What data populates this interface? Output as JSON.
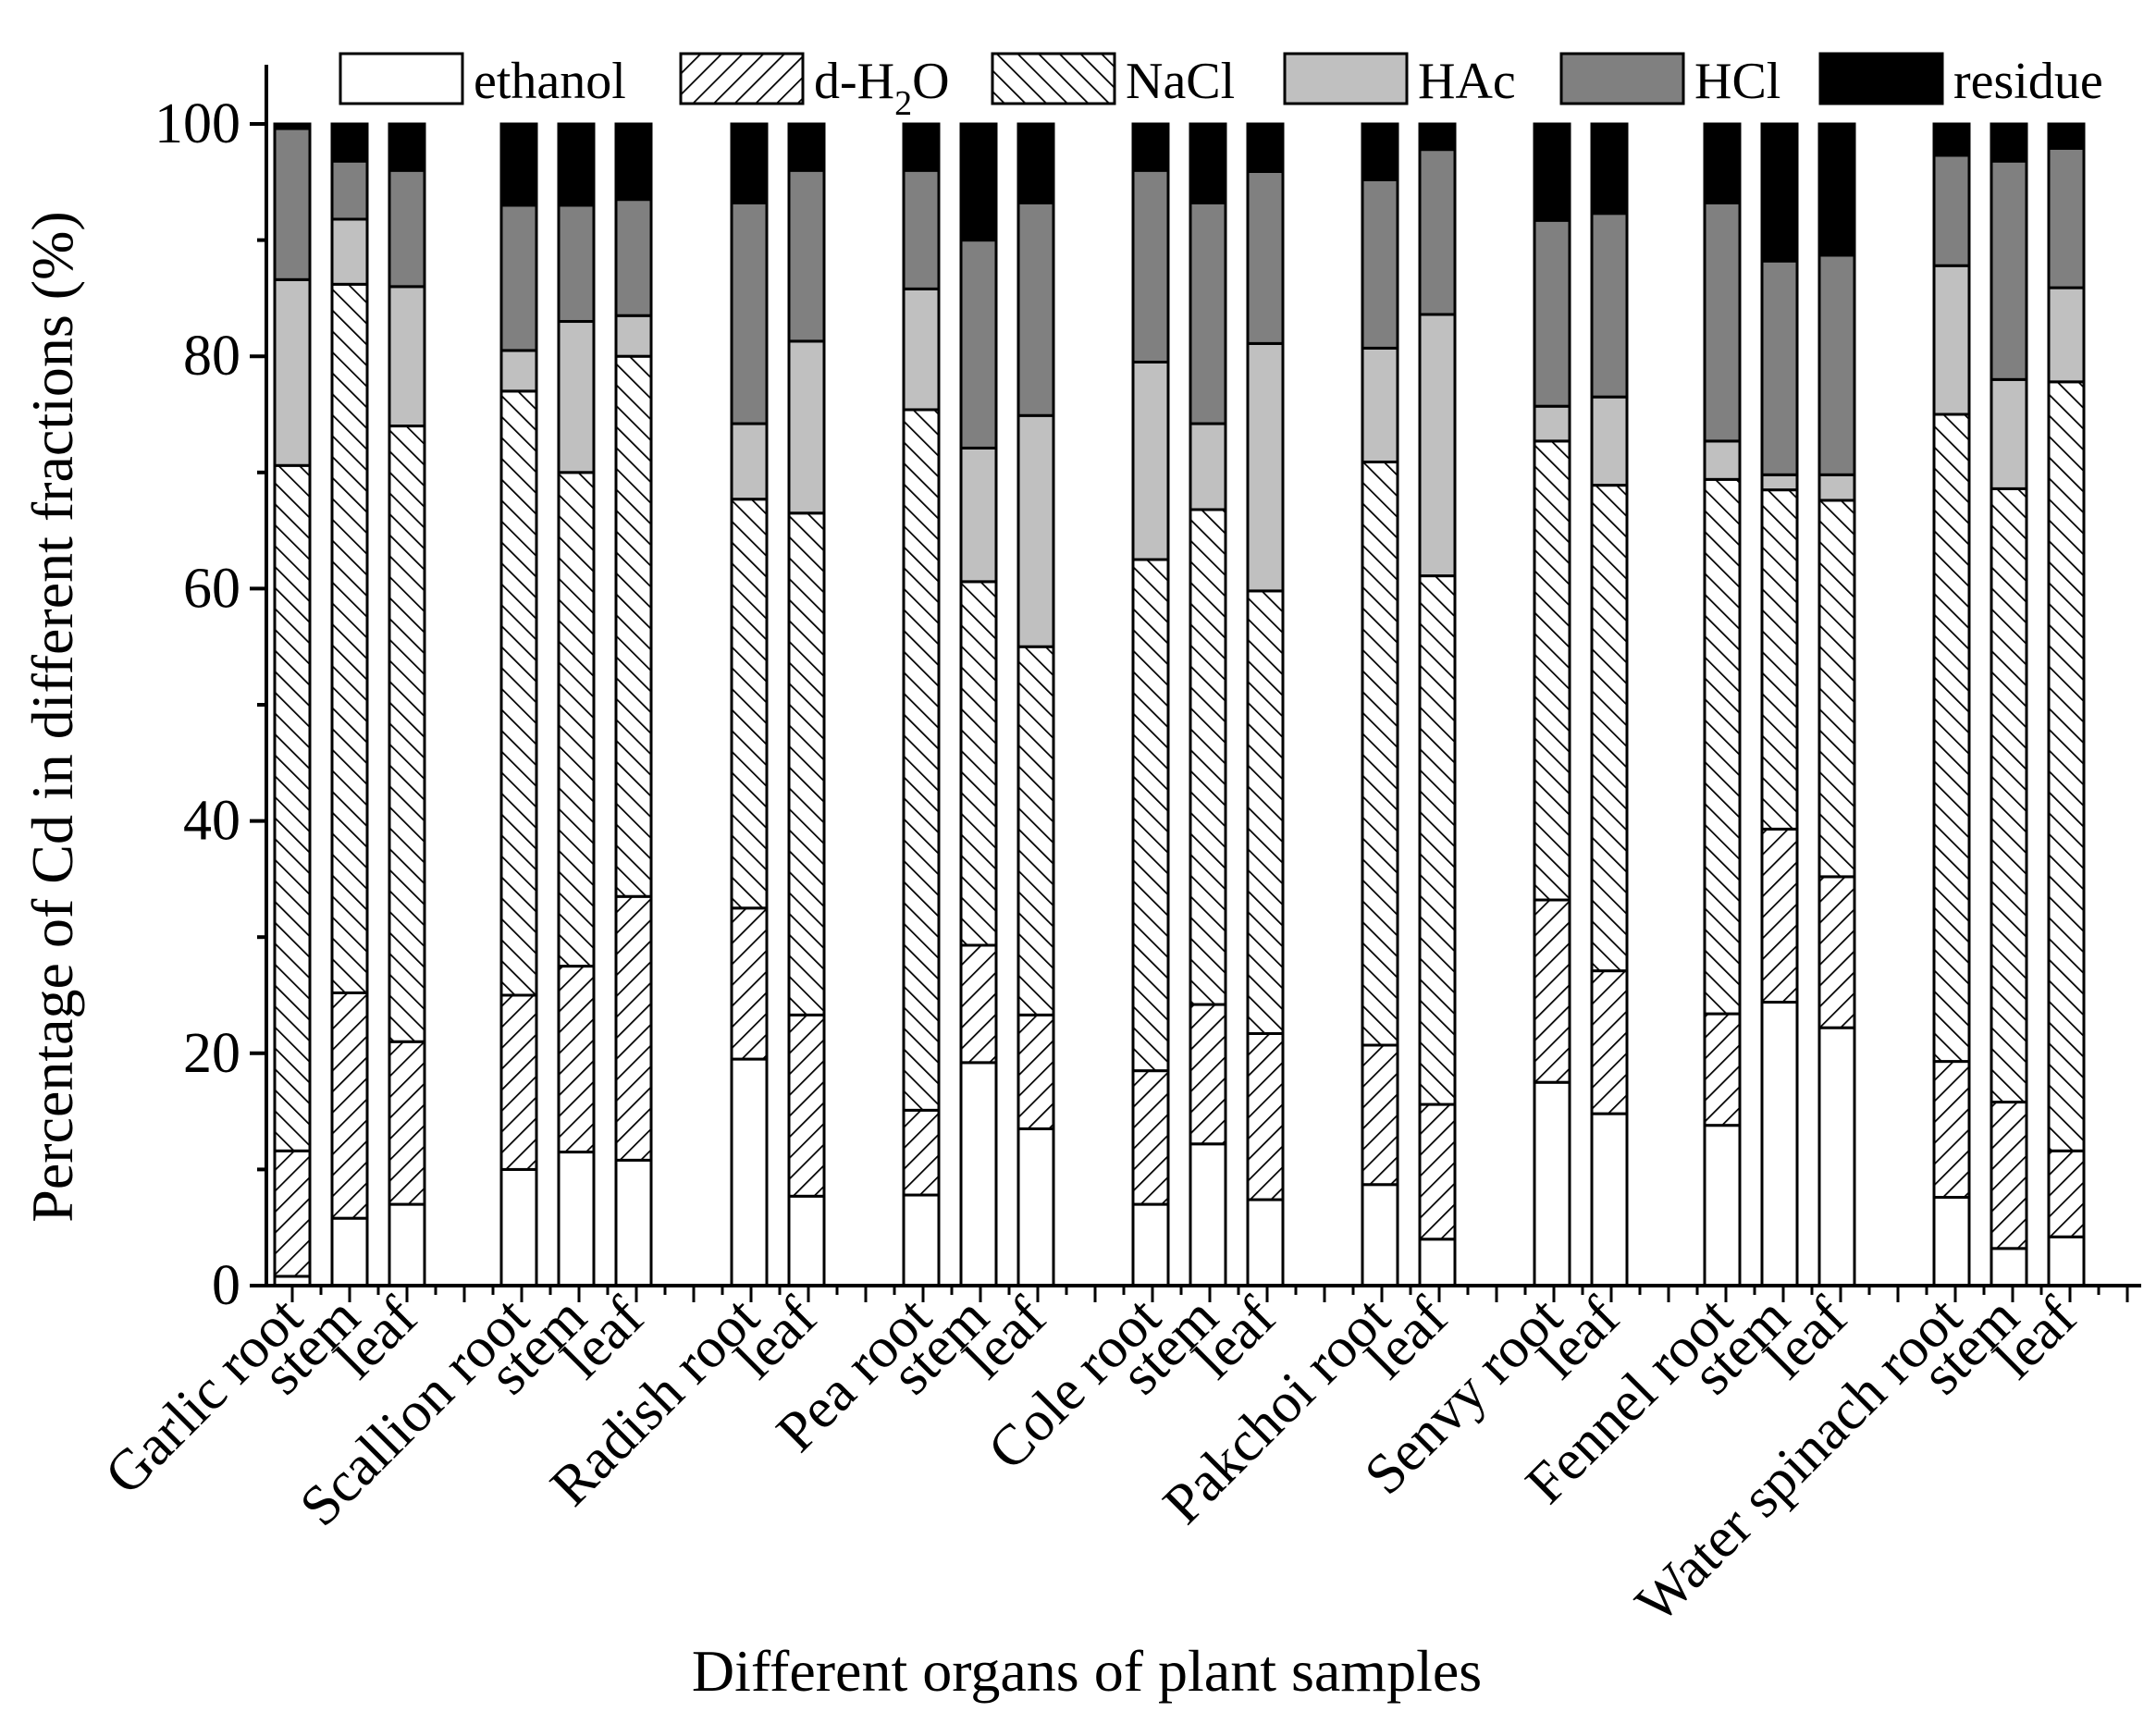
{
  "chart_data": {
    "type": "stacked-bar",
    "title": "",
    "xlabel": "Different organs of plant samples",
    "ylabel": "Percentage of Cd in different fractions (%)",
    "ylim": [
      0,
      105
    ],
    "yticks": [
      0,
      20,
      40,
      60,
      80,
      100
    ],
    "colors": {
      "ethanol": "#ffffff",
      "d-H2O": "#ffffff",
      "NaCl": "#ffffff",
      "HAc": "#c0c0c0",
      "HCl": "#808080",
      "residue": "#000000"
    },
    "legend": [
      {
        "key": "ethanol",
        "label": "ethanol",
        "pattern": "none"
      },
      {
        "key": "d-H2O",
        "label": "d-H",
        "sub": "2",
        "suffix": "O",
        "pattern": "diag-up"
      },
      {
        "key": "NaCl",
        "label": "NaCl",
        "pattern": "diag-down"
      },
      {
        "key": "HAc",
        "label": "HAc",
        "pattern": "none"
      },
      {
        "key": "HCl",
        "label": "HCl",
        "pattern": "none"
      },
      {
        "key": "residue",
        "label": "residue",
        "pattern": "none"
      }
    ],
    "bars": [
      {
        "label": "Garlic root",
        "ethanol": 0.8,
        "d-H2O": 10.8,
        "NaCl": 59,
        "HAc": 16,
        "HCl": 13,
        "residue": 0.4
      },
      {
        "label": "stem",
        "ethanol": 5.8,
        "d-H2O": 19.4,
        "NaCl": 61,
        "HAc": 5.6,
        "HCl": 5,
        "residue": 3.2
      },
      {
        "label": "leaf",
        "ethanol": 7,
        "d-H2O": 14,
        "NaCl": 53,
        "HAc": 12,
        "HCl": 10,
        "residue": 4
      },
      {
        "label": "Scallion root",
        "ethanol": 10,
        "d-H2O": 15,
        "NaCl": 52,
        "HAc": 3.5,
        "HCl": 12.5,
        "residue": 7
      },
      {
        "label": "stem",
        "ethanol": 11.5,
        "d-H2O": 16,
        "NaCl": 42.5,
        "HAc": 13,
        "HCl": 10,
        "residue": 7
      },
      {
        "label": "leaf",
        "ethanol": 10.8,
        "d-H2O": 22.7,
        "NaCl": 46.5,
        "HAc": 3.5,
        "HCl": 10,
        "residue": 6.5
      },
      {
        "label": "Radish root",
        "ethanol": 19.5,
        "d-H2O": 13,
        "NaCl": 35.2,
        "HAc": 6.5,
        "HCl": 19,
        "residue": 6.8
      },
      {
        "label": "leaf",
        "ethanol": 7.7,
        "d-H2O": 15.6,
        "NaCl": 43.2,
        "HAc": 14.8,
        "HCl": 14.7,
        "residue": 4
      },
      {
        "label": "Pea root",
        "ethanol": 7.8,
        "d-H2O": 7.3,
        "NaCl": 60.3,
        "HAc": 10.4,
        "HCl": 10.2,
        "residue": 4
      },
      {
        "label": "stem",
        "ethanol": 19.2,
        "d-H2O": 10.1,
        "NaCl": 31.3,
        "HAc": 11.5,
        "HCl": 17.9,
        "residue": 10
      },
      {
        "label": "leaf",
        "ethanol": 13.5,
        "d-H2O": 9.8,
        "NaCl": 31.7,
        "HAc": 19.9,
        "HCl": 18.3,
        "residue": 6.8
      },
      {
        "label": "Cole root",
        "ethanol": 7,
        "d-H2O": 11.5,
        "NaCl": 44,
        "HAc": 17,
        "HCl": 16.5,
        "residue": 4
      },
      {
        "label": "stem",
        "ethanol": 12.2,
        "d-H2O": 12,
        "NaCl": 42.6,
        "HAc": 7.4,
        "HCl": 19,
        "residue": 6.8
      },
      {
        "label": "leaf",
        "ethanol": 7.4,
        "d-H2O": 14.3,
        "NaCl": 38.1,
        "HAc": 21.3,
        "HCl": 14.8,
        "residue": 4.1
      },
      {
        "label": "Pakchoi  root",
        "ethanol": 8.7,
        "d-H2O": 12,
        "NaCl": 50.2,
        "HAc": 9.8,
        "HCl": 14.5,
        "residue": 4.8
      },
      {
        "label": "leaf",
        "ethanol": 4,
        "d-H2O": 11.6,
        "NaCl": 45.5,
        "HAc": 22.5,
        "HCl": 14.2,
        "residue": 2.2
      },
      {
        "label": "Senvy root",
        "ethanol": 17.5,
        "d-H2O": 15.7,
        "NaCl": 39.5,
        "HAc": 3,
        "HCl": 16,
        "residue": 8.3
      },
      {
        "label": "leaf",
        "ethanol": 14.8,
        "d-H2O": 12.3,
        "NaCl": 41.8,
        "HAc": 7.6,
        "HCl": 15.8,
        "residue": 7.7
      },
      {
        "label": "Fennel root",
        "ethanol": 13.8,
        "d-H2O": 9.6,
        "NaCl": 46,
        "HAc": 3.3,
        "HCl": 20.5,
        "residue": 6.8
      },
      {
        "label": "stem",
        "ethanol": 24.4,
        "d-H2O": 14.9,
        "NaCl": 29.2,
        "HAc": 1.3,
        "HCl": 18.4,
        "residue": 11.8
      },
      {
        "label": "leaf",
        "ethanol": 22.2,
        "d-H2O": 13,
        "NaCl": 32.4,
        "HAc": 2.2,
        "HCl": 18.9,
        "residue": 11.3
      },
      {
        "label": "Water spinach root",
        "ethanol": 7.6,
        "d-H2O": 11.7,
        "NaCl": 55.7,
        "HAc": 12.8,
        "HCl": 9.5,
        "residue": 2.7
      },
      {
        "label": "stem",
        "ethanol": 3.2,
        "d-H2O": 12.6,
        "NaCl": 52.8,
        "HAc": 9.4,
        "HCl": 18.8,
        "residue": 3.2
      },
      {
        "label": "leaf",
        "ethanol": 4.2,
        "d-H2O": 7.4,
        "NaCl": 66.2,
        "HAc": 8.1,
        "HCl": 12,
        "residue": 2.1
      }
    ]
  }
}
